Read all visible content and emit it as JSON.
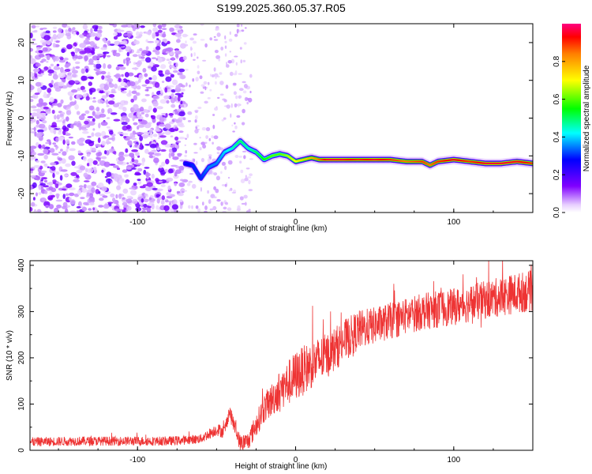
{
  "page_title": "S199.2025.360.05.37.R05",
  "chart_data": [
    {
      "id": "spectrogram",
      "type": "heatmap",
      "xlabel": "Height of straight line (km)",
      "ylabel": "Frequency (Hz)",
      "xlim": [
        -168,
        150
      ],
      "ylim": [
        -25,
        25
      ],
      "xticks": [
        -100,
        0,
        100
      ],
      "xtick_labels": [
        "-100",
        "0",
        "100"
      ],
      "yticks": [
        20,
        10,
        0,
        -10,
        -20
      ],
      "ytick_labels": [
        "20",
        "10",
        "0",
        "-10",
        "-20"
      ],
      "colorbar": {
        "label": "Normalized spectral amplitude",
        "range": [
          0,
          1
        ],
        "ticks": [
          0.0,
          0.2,
          0.4,
          0.6,
          0.8
        ],
        "tick_labels": [
          "0.0",
          "0.2",
          "0.4",
          "0.6",
          "0.8"
        ]
      },
      "noise_region_x": [
        -168,
        -70
      ],
      "signal_ridge": {
        "x": [
          -70,
          -65,
          -60,
          -55,
          -50,
          -45,
          -40,
          -35,
          -30,
          -25,
          -20,
          -15,
          -10,
          -5,
          0,
          5,
          10,
          15,
          20,
          30,
          40,
          50,
          60,
          70,
          80,
          85,
          90,
          100,
          110,
          120,
          130,
          140,
          150
        ],
        "y": [
          -12,
          -12.5,
          -16,
          -13,
          -12,
          -9,
          -8,
          -6,
          -8,
          -9,
          -11,
          -10,
          -9.5,
          -10,
          -11.5,
          -11,
          -10.5,
          -11,
          -11,
          -11,
          -11,
          -11,
          -11,
          -11.5,
          -11.5,
          -12.5,
          -11.5,
          -11,
          -11.5,
          -12,
          -12,
          -11.5,
          -12
        ],
        "amplitude": [
          0.25,
          0.3,
          0.3,
          0.35,
          0.35,
          0.4,
          0.45,
          0.5,
          0.45,
          0.5,
          0.55,
          0.6,
          0.6,
          0.65,
          0.7,
          0.75,
          0.8,
          0.85,
          0.95,
          0.95,
          0.9,
          0.95,
          0.9,
          0.85,
          0.9,
          0.85,
          0.9,
          0.95,
          0.9,
          0.95,
          0.95,
          0.95,
          0.9
        ]
      }
    },
    {
      "id": "snr",
      "type": "line",
      "xlabel": "Height of straight line (km)",
      "ylabel": "SNR (10 * v/v)",
      "xlim": [
        -168,
        150
      ],
      "ylim": [
        0,
        410
      ],
      "xticks": [
        -100,
        0,
        100
      ],
      "xtick_labels": [
        "-100",
        "0",
        "100"
      ],
      "yticks": [
        0,
        100,
        200,
        300,
        400
      ],
      "ytick_labels": [
        "0",
        "100",
        "200",
        "300",
        "400"
      ],
      "series": [
        {
          "name": "SNR",
          "color": "#ee3333",
          "trend_x": [
            -168,
            -140,
            -120,
            -100,
            -80,
            -70,
            -60,
            -55,
            -50,
            -45,
            -42,
            -38,
            -35,
            -30,
            -25,
            -20,
            -10,
            0,
            10,
            20,
            30,
            40,
            60,
            80,
            100,
            120,
            140,
            150
          ],
          "trend_y": [
            18,
            20,
            20,
            20,
            20,
            22,
            25,
            35,
            45,
            40,
            85,
            45,
            15,
            20,
            55,
            90,
            130,
            160,
            185,
            205,
            235,
            260,
            280,
            300,
            310,
            325,
            340,
            345
          ],
          "noise_amp_x": [
            -168,
            -60,
            -30,
            0,
            50,
            100,
            150
          ],
          "noise_amp_y": [
            10,
            10,
            20,
            55,
            40,
            40,
            45
          ]
        }
      ]
    }
  ]
}
